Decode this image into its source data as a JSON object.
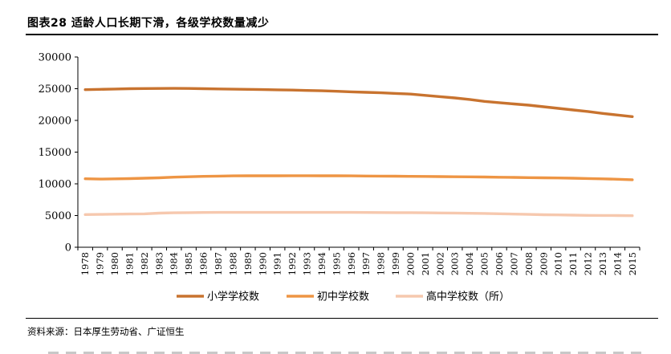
{
  "header": {
    "title": "图表28 适龄人口长期下滑，各级学校数量减少"
  },
  "footer": {
    "source": "资料来源：日本厚生劳动省、广证恒生"
  },
  "colors": {
    "primary": "#C8732F",
    "junior": "#EE9544",
    "high": "#F6C8AE",
    "axis": "#000000"
  },
  "chart_data": {
    "type": "line",
    "title": "图表28 适龄人口长期下滑，各级学校数量减少",
    "xlabel": "",
    "ylabel": "",
    "ylim": [
      0,
      30000
    ],
    "yticks": [
      0,
      5000,
      10000,
      15000,
      20000,
      25000,
      30000
    ],
    "legend_position": "bottom",
    "grid": false,
    "x": [
      "1978",
      "1979",
      "1980",
      "1981",
      "1982",
      "1983",
      "1984",
      "1985",
      "1986",
      "1987",
      "1988",
      "1989",
      "1990",
      "1991",
      "1992",
      "1993",
      "1994",
      "1995",
      "1996",
      "1997",
      "1998",
      "1999",
      "2000",
      "2001",
      "2002",
      "2003",
      "2004",
      "2005",
      "2006",
      "2007",
      "2008",
      "2009",
      "2010",
      "2011",
      "2012",
      "2013",
      "2014",
      "2015"
    ],
    "series": [
      {
        "name": "小学学校数",
        "color": "#C8732F",
        "values": [
          24850,
          24900,
          24950,
          25000,
          25030,
          25040,
          25050,
          25040,
          25000,
          24960,
          24930,
          24900,
          24860,
          24820,
          24780,
          24720,
          24670,
          24600,
          24510,
          24430,
          24350,
          24250,
          24150,
          23950,
          23750,
          23550,
          23300,
          23000,
          22800,
          22600,
          22400,
          22150,
          21900,
          21650,
          21400,
          21100,
          20850,
          20600
        ]
      },
      {
        "name": "初中学校数",
        "color": "#EE9544",
        "values": [
          10800,
          10750,
          10780,
          10820,
          10880,
          10950,
          11050,
          11120,
          11180,
          11220,
          11250,
          11260,
          11260,
          11270,
          11280,
          11280,
          11270,
          11260,
          11250,
          11230,
          11210,
          11200,
          11180,
          11160,
          11140,
          11120,
          11100,
          11070,
          11040,
          11010,
          10980,
          10950,
          10920,
          10880,
          10840,
          10790,
          10720,
          10650
        ]
      },
      {
        "name": "高中学校数（所）",
        "color": "#F6C8AE",
        "values": [
          5150,
          5180,
          5220,
          5240,
          5260,
          5380,
          5430,
          5450,
          5480,
          5490,
          5500,
          5500,
          5500,
          5500,
          5500,
          5500,
          5500,
          5490,
          5490,
          5480,
          5470,
          5460,
          5450,
          5430,
          5410,
          5390,
          5360,
          5330,
          5280,
          5230,
          5180,
          5130,
          5100,
          5060,
          5030,
          5010,
          5000,
          4980
        ]
      }
    ]
  }
}
